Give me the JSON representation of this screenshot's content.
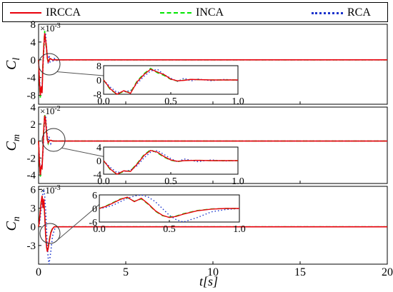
{
  "legend": {
    "items": [
      {
        "label": "IRCCA",
        "color": "#e8000b",
        "style": "solid"
      },
      {
        "label": "INCA",
        "color": "#00e600",
        "style": "dashed"
      },
      {
        "label": "RCA",
        "color": "#1a33cc",
        "style": "dotted"
      }
    ]
  },
  "chart_data": {
    "type": "line",
    "xlabel": "t[s]",
    "xlim": [
      0,
      20
    ],
    "xticks": [
      "0",
      "5",
      "10",
      "15",
      "20"
    ],
    "grid": false,
    "legend_position": "top",
    "panels": [
      {
        "ylabel": "Cl",
        "ylabel_main": "C",
        "ylabel_sub": "l",
        "scale": "×10^-3",
        "ylim": [
          -10,
          8
        ],
        "yticks": [
          "8",
          "4",
          "0",
          "-4",
          "-8"
        ],
        "ytick_values": [
          8,
          4,
          0,
          -4,
          -8
        ],
        "inset": {
          "xlim": [
            0,
            1
          ],
          "ylim": [
            -8,
            8
          ],
          "xticks": [
            "0.0",
            "0.5",
            "1.0"
          ],
          "yticks": [
            "8",
            "0",
            "-8"
          ],
          "ytick_values": [
            8,
            0,
            -8
          ]
        },
        "series": [
          {
            "name": "IRCCA",
            "x": [
              0,
              0.05,
              0.1,
              0.15,
              0.2,
              0.25,
              0.3,
              0.35,
              0.4,
              0.45,
              0.5,
              0.55,
              0.6,
              0.65,
              0.7,
              0.8,
              0.9,
              1.0,
              1.2,
              20
            ],
            "y": [
              0,
              -5,
              -8,
              -6,
              -7.5,
              -1,
              3,
              6,
              4.5,
              3,
              0.5,
              -0.5,
              -0.2,
              0.3,
              0.2,
              0,
              0,
              0,
              0,
              0
            ]
          },
          {
            "name": "INCA",
            "x": [
              0,
              0.05,
              0.1,
              0.15,
              0.2,
              0.25,
              0.3,
              0.35,
              0.4,
              0.45,
              0.5,
              0.55,
              0.6,
              0.65,
              0.7,
              0.8,
              0.9,
              1.0,
              1.2,
              20
            ],
            "y": [
              0,
              -5.5,
              -8.5,
              -6.5,
              -7,
              -0.5,
              3.5,
              6.5,
              4,
              2.5,
              0.3,
              -0.6,
              -0.1,
              0.3,
              0.2,
              0,
              0,
              0,
              0,
              0
            ]
          },
          {
            "name": "RCA",
            "x": [
              0,
              0.05,
              0.1,
              0.15,
              0.2,
              0.25,
              0.3,
              0.35,
              0.4,
              0.45,
              0.5,
              0.55,
              0.6,
              0.65,
              0.7,
              0.8,
              0.9,
              1.0,
              1.2,
              20
            ],
            "y": [
              0,
              -4,
              -7,
              -6.5,
              -6,
              -2,
              2,
              5,
              6,
              3,
              1,
              -0.8,
              1,
              -0.6,
              0.5,
              -0.4,
              0.3,
              -0.2,
              0,
              0
            ]
          }
        ]
      },
      {
        "ylabel": "Cm",
        "ylabel_main": "C",
        "ylabel_sub": "m",
        "scale": "×10^-2",
        "ylim": [
          -5,
          4
        ],
        "yticks": [
          "4",
          "2",
          "0",
          "-2",
          "-4"
        ],
        "ytick_values": [
          4,
          2,
          0,
          -2,
          -4
        ],
        "inset": {
          "xlim": [
            0,
            1
          ],
          "ylim": [
            -4,
            4
          ],
          "xticks": [
            "0.0",
            "0.5",
            "1.0"
          ],
          "yticks": [
            "4",
            "0",
            "-4"
          ],
          "ytick_values": [
            4,
            0,
            -4
          ]
        },
        "series": [
          {
            "name": "IRCCA",
            "x": [
              0,
              0.05,
              0.1,
              0.15,
              0.2,
              0.25,
              0.3,
              0.35,
              0.4,
              0.45,
              0.5,
              0.55,
              0.6,
              0.7,
              0.8,
              0.9,
              1.0,
              1.2,
              20
            ],
            "y": [
              0,
              -2.5,
              -4,
              -3,
              -3.2,
              -1,
              1.5,
              3,
              2.5,
              1.2,
              0.2,
              -0.2,
              0,
              0.1,
              0,
              0,
              0,
              0,
              0
            ]
          },
          {
            "name": "INCA",
            "x": [
              0,
              0.05,
              0.1,
              0.15,
              0.2,
              0.25,
              0.3,
              0.35,
              0.4,
              0.45,
              0.5,
              0.55,
              0.6,
              0.7,
              0.8,
              0.9,
              1.0,
              1.2,
              20
            ],
            "y": [
              0,
              -2.7,
              -4.2,
              -3.2,
              -3,
              -0.8,
              1.7,
              3.2,
              2.3,
              1,
              0.1,
              -0.3,
              0,
              0.1,
              0,
              0,
              0,
              0,
              0
            ]
          },
          {
            "name": "RCA",
            "x": [
              0,
              0.05,
              0.1,
              0.15,
              0.2,
              0.25,
              0.3,
              0.35,
              0.4,
              0.45,
              0.5,
              0.55,
              0.6,
              0.7,
              0.8,
              0.9,
              1.0,
              1.2,
              20
            ],
            "y": [
              0,
              -2,
              -3.5,
              -3.2,
              -2.8,
              -1.5,
              0.8,
              2.5,
              3,
              1.8,
              0.6,
              -0.4,
              0.5,
              -0.3,
              0.2,
              -0.1,
              0,
              0,
              0
            ]
          }
        ]
      },
      {
        "ylabel": "Cn",
        "ylabel_main": "C",
        "ylabel_sub": "n",
        "scale": "×10^-3",
        "ylim": [
          -6,
          6.5
        ],
        "yticks": [
          "6",
          "3",
          "0",
          "-3"
        ],
        "ytick_values": [
          6,
          3,
          0,
          -3
        ],
        "inset": {
          "xlim": [
            0,
            1
          ],
          "ylim": [
            -6,
            6
          ],
          "xticks": [
            "0.0",
            "0.5",
            "1.0"
          ],
          "yticks": [
            "6",
            "0",
            "-6"
          ],
          "ytick_values": [
            6,
            0,
            -6
          ]
        },
        "series": [
          {
            "name": "IRCCA",
            "x": [
              0,
              0.05,
              0.1,
              0.15,
              0.2,
              0.25,
              0.3,
              0.35,
              0.4,
              0.45,
              0.5,
              0.55,
              0.6,
              0.7,
              0.8,
              0.9,
              1.0,
              1.2,
              20
            ],
            "y": [
              0,
              1,
              2.5,
              4,
              5,
              3,
              4.5,
              2,
              -1,
              -3,
              -4,
              -3.5,
              -2.5,
              -1,
              -0.3,
              0,
              0,
              0,
              0
            ]
          },
          {
            "name": "INCA",
            "x": [
              0,
              0.05,
              0.1,
              0.15,
              0.2,
              0.25,
              0.3,
              0.35,
              0.4,
              0.45,
              0.5,
              0.55,
              0.6,
              0.7,
              0.8,
              0.9,
              1.0,
              1.2,
              20
            ],
            "y": [
              0,
              1.2,
              2.7,
              4.2,
              4.8,
              3.2,
              4.2,
              1.8,
              -1.2,
              -3.2,
              -3.8,
              -3.3,
              -2.3,
              -0.9,
              -0.2,
              0,
              0,
              0,
              0
            ]
          },
          {
            "name": "RCA",
            "x": [
              0,
              0.05,
              0.1,
              0.15,
              0.2,
              0.25,
              0.3,
              0.35,
              0.4,
              0.45,
              0.5,
              0.55,
              0.6,
              0.7,
              0.8,
              0.9,
              1.0,
              1.2,
              20
            ],
            "y": [
              0,
              0.5,
              1.5,
              3,
              4.5,
              5.5,
              6,
              5,
              3,
              0,
              -3,
              -5,
              -6,
              -4,
              -1.5,
              -0.5,
              0,
              0,
              0
            ]
          }
        ]
      }
    ]
  }
}
